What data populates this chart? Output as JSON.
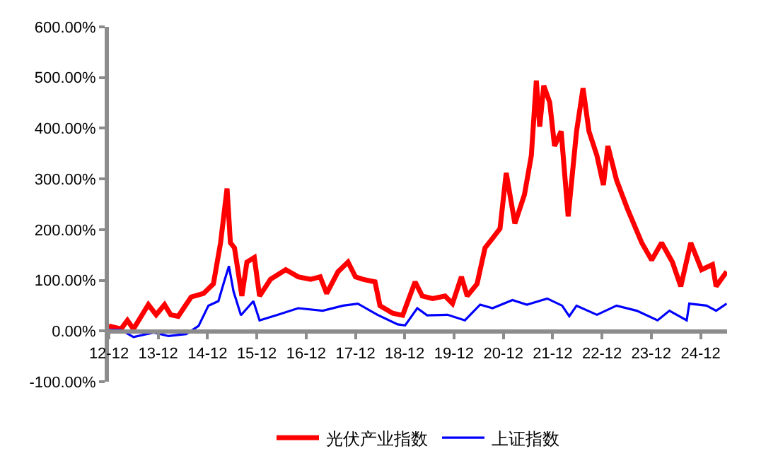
{
  "chart_data": {
    "type": "line",
    "xlim": [
      "2012-12-01",
      "2025-06-15"
    ],
    "xticks": [
      {
        "value": "2012-12",
        "label": "12-12"
      },
      {
        "value": "2013-12",
        "label": "13-12"
      },
      {
        "value": "2014-12",
        "label": "14-12"
      },
      {
        "value": "2015-12",
        "label": "15-12"
      },
      {
        "value": "2016-12",
        "label": "16-12"
      },
      {
        "value": "2017-12",
        "label": "17-12"
      },
      {
        "value": "2018-12",
        "label": "18-12"
      },
      {
        "value": "2019-12",
        "label": "19-12"
      },
      {
        "value": "2020-12",
        "label": "20-12"
      },
      {
        "value": "2021-12",
        "label": "21-12"
      },
      {
        "value": "2022-12",
        "label": "22-12"
      },
      {
        "value": "2023-12",
        "label": "23-12"
      },
      {
        "value": "2024-12",
        "label": "24-12"
      }
    ],
    "ylim": [
      -100,
      600
    ],
    "yticks": [
      {
        "value": -100,
        "label": "-100.00%"
      },
      {
        "value": 0,
        "label": "0.00%"
      },
      {
        "value": 100,
        "label": "100.00%"
      },
      {
        "value": 200,
        "label": "200.00%"
      },
      {
        "value": 300,
        "label": "300.00%"
      },
      {
        "value": 400,
        "label": "400.00%"
      },
      {
        "value": 500,
        "label": "500.00%"
      },
      {
        "value": 600,
        "label": "600.00%"
      }
    ],
    "legend": "bottom",
    "marker": "none",
    "line_style": "solid",
    "series": [
      {
        "name": "光伏产业指数",
        "color": "#ff0000",
        "x": [
          "2012-12-01",
          "2013-03-01",
          "2013-04-17",
          "2013-06-01",
          "2013-09-19",
          "2013-11-16",
          "2014-01-17",
          "2014-03-04",
          "2014-04-28",
          "2014-08-02",
          "2014-11-02",
          "2015-01-14",
          "2015-03-08",
          "2015-04-25",
          "2015-05-20",
          "2015-06-19",
          "2015-08-13",
          "2015-09-19",
          "2015-11-13",
          "2015-12-22",
          "2016-03-12",
          "2016-07-03",
          "2016-10-03",
          "2017-01-03",
          "2017-03-15",
          "2017-05-02",
          "2017-07-25",
          "2017-10-07",
          "2017-12-01",
          "2018-01-25",
          "2018-04-25",
          "2018-06-01",
          "2018-09-04",
          "2018-11-16",
          "2019-02-16",
          "2019-04-10",
          "2019-06-26",
          "2019-09-26",
          "2019-11-20",
          "2020-01-25",
          "2020-03-08",
          "2020-05-20",
          "2020-07-18",
          "2020-09-12",
          "2020-11-06",
          "2020-12-22",
          "2021-02-24",
          "2021-05-06",
          "2021-06-26",
          "2021-08-02",
          "2021-08-27",
          "2021-09-26",
          "2021-11-09",
          "2021-12-15",
          "2022-02-02",
          "2022-03-26",
          "2022-05-27",
          "2022-07-14",
          "2022-08-27",
          "2022-10-25",
          "2022-12-12",
          "2023-01-14",
          "2023-03-19",
          "2023-06-08",
          "2023-09-22",
          "2023-12-04",
          "2024-02-16",
          "2024-05-06",
          "2024-07-07",
          "2024-09-19",
          "2024-12-08",
          "2025-02-27",
          "2025-03-26",
          "2025-06-12"
        ],
        "values": [
          10,
          4,
          21,
          4,
          52,
          32,
          52,
          32,
          29,
          67,
          74,
          93,
          174,
          281,
          174,
          164,
          69,
          136,
          145,
          69,
          102,
          121,
          107,
          102,
          107,
          74,
          117,
          136,
          107,
          102,
          97,
          50,
          35,
          31,
          97,
          69,
          64,
          69,
          54,
          107,
          69,
          93,
          164,
          183,
          202,
          312,
          212,
          269,
          346,
          494,
          403,
          484,
          451,
          365,
          394,
          226,
          394,
          479,
          394,
          346,
          288,
          365,
          298,
          241,
          174,
          140,
          174,
          136,
          88,
          174,
          121,
          131,
          88,
          117
        ]
      },
      {
        "name": "上证指数",
        "color": "#0000ff",
        "x": [
          "2012-12-01",
          "2013-03-01",
          "2013-06-01",
          "2013-10-29",
          "2014-02-16",
          "2014-06-26",
          "2014-09-26",
          "2014-12-08",
          "2015-02-20",
          "2015-04-03",
          "2015-05-09",
          "2015-06-12",
          "2015-08-06",
          "2015-11-06",
          "2015-12-22",
          "2016-05-06",
          "2016-10-03",
          "2017-04-03",
          "2017-09-01",
          "2017-12-19",
          "2018-05-13",
          "2018-10-10",
          "2018-12-04",
          "2019-03-04",
          "2019-05-16",
          "2019-10-14",
          "2020-02-20",
          "2020-06-12",
          "2020-09-12",
          "2021-02-06",
          "2021-05-24",
          "2021-10-22",
          "2022-02-09",
          "2022-04-03",
          "2022-05-27",
          "2022-10-25",
          "2023-03-19",
          "2023-08-16",
          "2024-01-17",
          "2024-04-14",
          "2024-08-20",
          "2024-09-08",
          "2025-01-14",
          "2025-03-26",
          "2025-06-12"
        ],
        "values": [
          2,
          2,
          -12,
          -3,
          -10,
          -6,
          10,
          50,
          59,
          97,
          128,
          78,
          31,
          59,
          21,
          32,
          45,
          40,
          50,
          54,
          32,
          13,
          11,
          45,
          31,
          32,
          21,
          52,
          45,
          61,
          52,
          64,
          50,
          29,
          50,
          32,
          50,
          40,
          21,
          40,
          21,
          54,
          50,
          40,
          54
        ]
      }
    ]
  }
}
